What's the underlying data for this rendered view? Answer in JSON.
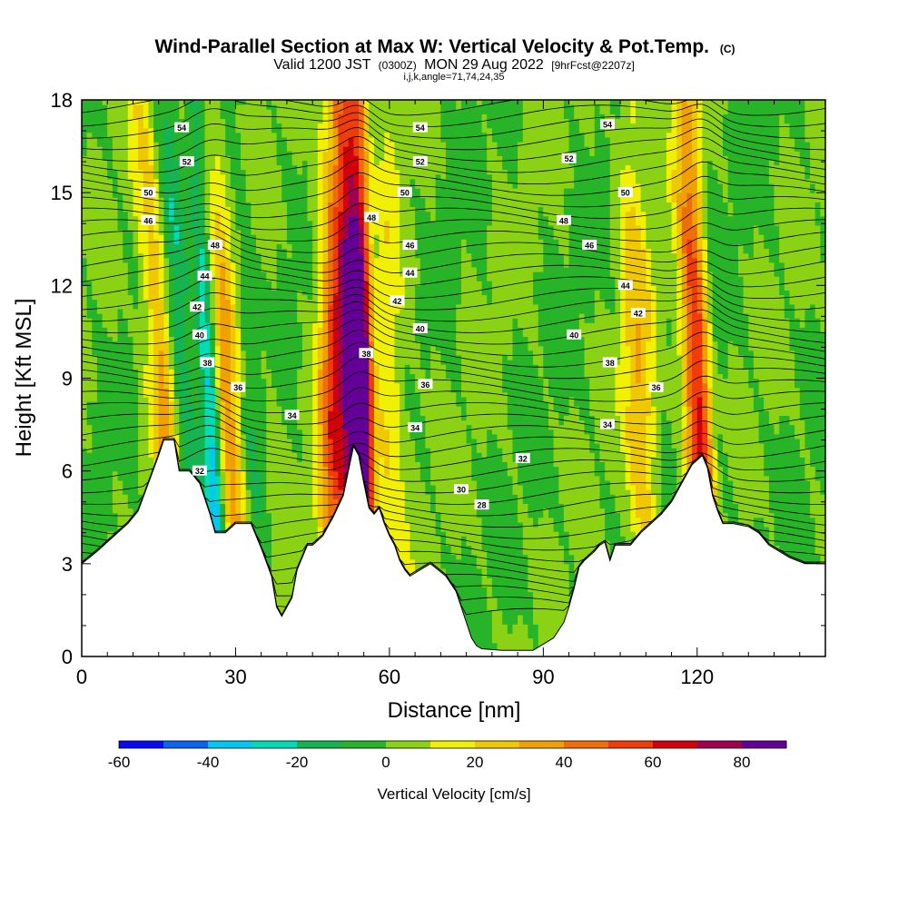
{
  "chart_data": {
    "type": "heatmap",
    "title": "Wind-Parallel Section at Max W: Vertical Velocity & Pot.Temp.",
    "title_mark": "(C)",
    "subtitle_parts": [
      "Valid 1200 JST",
      "(0300Z)",
      "MON 29 Aug 2022",
      "[9hrFcst@2207z]"
    ],
    "subtitle2": "i,j,k,angle=71,74,24,35",
    "xlabel": "Distance [nm]",
    "ylabel": "Height [Kft MSL]",
    "xlim": [
      0,
      145
    ],
    "ylim": [
      0,
      18
    ],
    "xticks": [
      0,
      30,
      60,
      90,
      120
    ],
    "yticks": [
      0,
      3,
      6,
      9,
      12,
      15,
      18
    ],
    "colorbar": {
      "label": "Vertical Velocity [cm/s]",
      "ticks": [
        -60,
        -40,
        -20,
        0,
        20,
        40,
        60,
        80
      ],
      "min": -60,
      "max": 90,
      "step": 10,
      "colors": [
        "#0a0af0",
        "#0a64f0",
        "#00c8f0",
        "#00dcb4",
        "#14b450",
        "#28b428",
        "#8cd214",
        "#f0f000",
        "#f0c800",
        "#f0a000",
        "#f06e0a",
        "#f03c0a",
        "#d2000a",
        "#a00050",
        "#640096"
      ]
    },
    "terrain": [
      [
        0,
        3
      ],
      [
        3,
        3.4
      ],
      [
        5,
        3.7
      ],
      [
        7,
        4.0
      ],
      [
        9,
        4.3
      ],
      [
        11,
        4.7
      ],
      [
        13,
        5.6
      ],
      [
        15,
        6.5
      ],
      [
        16,
        7.0
      ],
      [
        18,
        7.0
      ],
      [
        19,
        6.0
      ],
      [
        21,
        6.0
      ],
      [
        23,
        5.6
      ],
      [
        24,
        5.1
      ],
      [
        25,
        4.6
      ],
      [
        26,
        4.0
      ],
      [
        28,
        4.0
      ],
      [
        30,
        4.3
      ],
      [
        33,
        4.3
      ],
      [
        35,
        3.5
      ],
      [
        37,
        2.6
      ],
      [
        38,
        1.6
      ],
      [
        39,
        1.3
      ],
      [
        41,
        1.9
      ],
      [
        42,
        2.8
      ],
      [
        44,
        3.6
      ],
      [
        45,
        3.6
      ],
      [
        47,
        3.9
      ],
      [
        49,
        4.5
      ],
      [
        51,
        5.2
      ],
      [
        52,
        6.0
      ],
      [
        53,
        6.8
      ],
      [
        54,
        6.5
      ],
      [
        55,
        5.6
      ],
      [
        56,
        4.8
      ],
      [
        57,
        4.6
      ],
      [
        58,
        4.8
      ],
      [
        59,
        4.3
      ],
      [
        60,
        3.9
      ],
      [
        61,
        3.6
      ],
      [
        62,
        3.1
      ],
      [
        63,
        2.8
      ],
      [
        64,
        2.6
      ],
      [
        66,
        2.8
      ],
      [
        68,
        3.0
      ],
      [
        71,
        2.6
      ],
      [
        73,
        2.1
      ],
      [
        74,
        1.6
      ],
      [
        75,
        1.1
      ],
      [
        76,
        0.6
      ],
      [
        77,
        0.35
      ],
      [
        78,
        0.25
      ],
      [
        82,
        0.2
      ],
      [
        88,
        0.2
      ],
      [
        90,
        0.4
      ],
      [
        92,
        0.6
      ],
      [
        94,
        1.1
      ],
      [
        95,
        1.6
      ],
      [
        96,
        2.2
      ],
      [
        97,
        2.9
      ],
      [
        98,
        3.1
      ],
      [
        100,
        3.4
      ],
      [
        101,
        3.6
      ],
      [
        102,
        3.7
      ],
      [
        103,
        3.1
      ],
      [
        104,
        3.6
      ],
      [
        107,
        3.6
      ],
      [
        109,
        4.0
      ],
      [
        111,
        4.3
      ],
      [
        113,
        4.6
      ],
      [
        115,
        5.0
      ],
      [
        117,
        5.6
      ],
      [
        119,
        6.2
      ],
      [
        121,
        6.5
      ],
      [
        122,
        6.1
      ],
      [
        123,
        5.2
      ],
      [
        124,
        4.7
      ],
      [
        125,
        4.3
      ],
      [
        127,
        4.3
      ],
      [
        130,
        4.2
      ],
      [
        132,
        4.0
      ],
      [
        134,
        3.6
      ],
      [
        136,
        3.4
      ],
      [
        138,
        3.2
      ],
      [
        141,
        3.0
      ],
      [
        145,
        3.0
      ]
    ],
    "updrafts": [
      {
        "center": 17,
        "width": 3,
        "w": 40,
        "tilt": -0.45
      },
      {
        "center": 28,
        "width": 3,
        "w": 30,
        "tilt": -0.5
      },
      {
        "center": 31,
        "width": 5,
        "w": 20,
        "tilt": -0.3
      },
      {
        "center": 54,
        "width": 3,
        "w": 75,
        "tilt": -0.2
      },
      {
        "center": 55,
        "width": 3,
        "w": 45,
        "tilt": -0.1
      },
      {
        "center": 58,
        "width": 5,
        "w": 25,
        "tilt": -0.1
      },
      {
        "center": 109,
        "width": 3,
        "w": 30,
        "tilt": -0.2
      },
      {
        "center": 121,
        "width": 3,
        "w": 80,
        "tilt": -0.25
      },
      {
        "center": 49,
        "width": 3,
        "w": 50,
        "tilt": 0
      }
    ],
    "downdrafts": [
      {
        "center": 20,
        "width": 2.5,
        "w": -30,
        "tilt": -0.4
      },
      {
        "center": 25.5,
        "width": 2,
        "w": -55,
        "tilt": -0.3
      },
      {
        "center": 57,
        "width": 2,
        "w": -40,
        "tilt": -0.05
      },
      {
        "center": 123,
        "width": 2.5,
        "w": -30,
        "tilt": -0.25
      },
      {
        "center": 33,
        "width": 2.5,
        "w": -25,
        "tilt": -0.3
      }
    ],
    "theta_labels": [
      {
        "text": "54",
        "x": 19.5,
        "h": 17.1
      },
      {
        "text": "52",
        "x": 20.5,
        "h": 16.0
      },
      {
        "text": "50",
        "x": 13,
        "h": 15.0
      },
      {
        "text": "46",
        "x": 13,
        "h": 14.1
      },
      {
        "text": "48",
        "x": 26,
        "h": 13.3
      },
      {
        "text": "44",
        "x": 24,
        "h": 12.3
      },
      {
        "text": "42",
        "x": 22.5,
        "h": 11.3
      },
      {
        "text": "40",
        "x": 23,
        "h": 10.4
      },
      {
        "text": "38",
        "x": 24.5,
        "h": 9.5
      },
      {
        "text": "36",
        "x": 30.5,
        "h": 8.7
      },
      {
        "text": "34",
        "x": 41,
        "h": 7.8
      },
      {
        "text": "32",
        "x": 23,
        "h": 6.0
      },
      {
        "text": "54",
        "x": 66,
        "h": 17.1
      },
      {
        "text": "52",
        "x": 66,
        "h": 16.0
      },
      {
        "text": "50",
        "x": 63,
        "h": 15.0
      },
      {
        "text": "48",
        "x": 56.5,
        "h": 14.2
      },
      {
        "text": "46",
        "x": 64,
        "h": 13.3
      },
      {
        "text": "44",
        "x": 64,
        "h": 12.4
      },
      {
        "text": "42",
        "x": 61.5,
        "h": 11.5
      },
      {
        "text": "40",
        "x": 66,
        "h": 10.6
      },
      {
        "text": "38",
        "x": 55.5,
        "h": 9.8
      },
      {
        "text": "36",
        "x": 67,
        "h": 8.8
      },
      {
        "text": "34",
        "x": 65,
        "h": 7.4
      },
      {
        "text": "32",
        "x": 86,
        "h": 6.4
      },
      {
        "text": "30",
        "x": 74,
        "h": 5.4
      },
      {
        "text": "28",
        "x": 78,
        "h": 4.9
      },
      {
        "text": "54",
        "x": 102.5,
        "h": 17.2
      },
      {
        "text": "52",
        "x": 95,
        "h": 16.1
      },
      {
        "text": "50",
        "x": 106,
        "h": 15.0
      },
      {
        "text": "48",
        "x": 94,
        "h": 14.1
      },
      {
        "text": "46",
        "x": 99,
        "h": 13.3
      },
      {
        "text": "44",
        "x": 106,
        "h": 12.0
      },
      {
        "text": "42",
        "x": 108.5,
        "h": 11.1
      },
      {
        "text": "40",
        "x": 96,
        "h": 10.4
      },
      {
        "text": "38",
        "x": 103,
        "h": 9.5
      },
      {
        "text": "36",
        "x": 112,
        "h": 8.7
      },
      {
        "text": "34",
        "x": 102.5,
        "h": 7.5
      }
    ]
  }
}
